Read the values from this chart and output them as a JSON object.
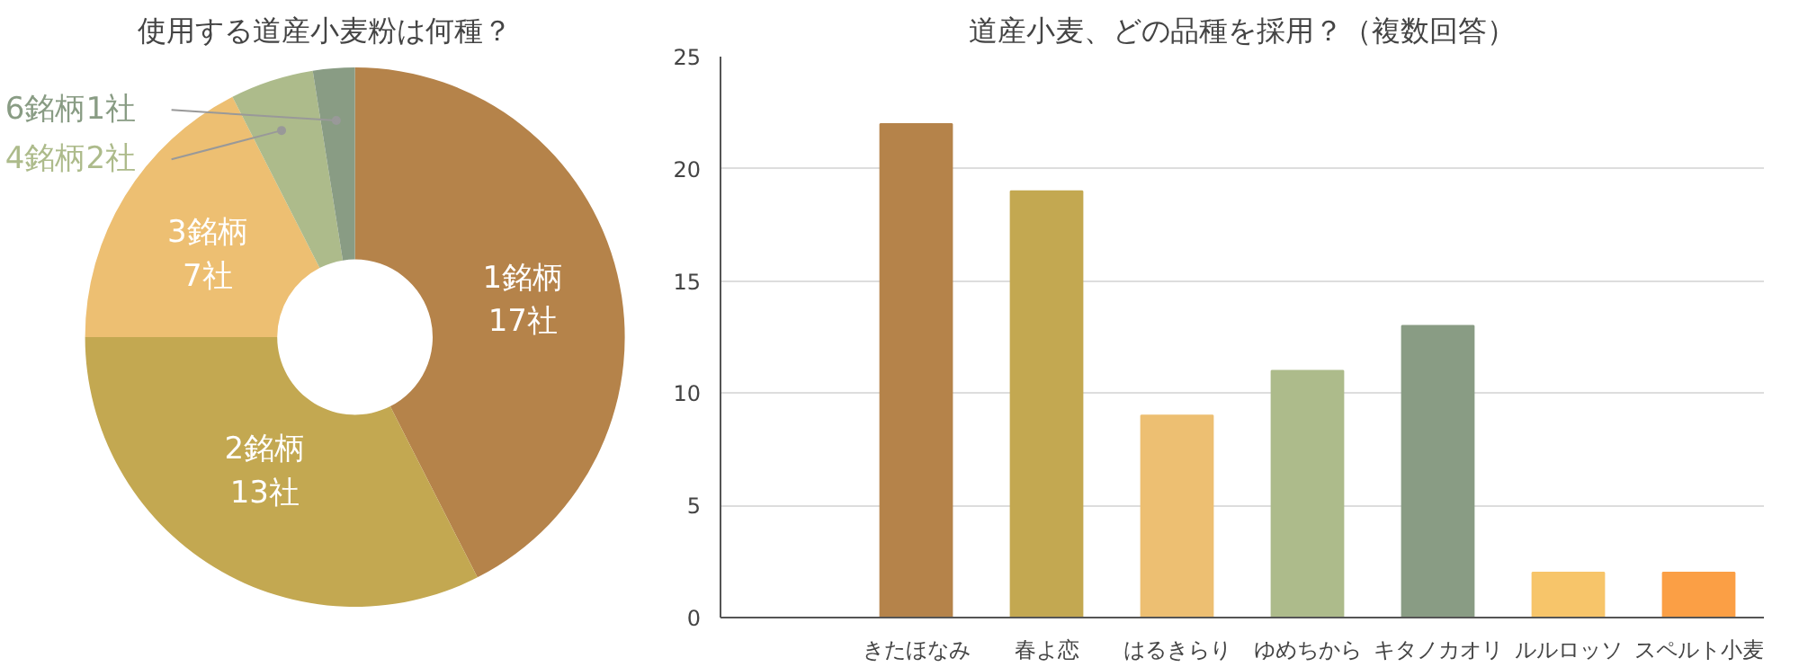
{
  "chart_data": [
    {
      "type": "donut",
      "title": "使用する道産小麦粉は何種？",
      "categories": [
        "1銘柄",
        "2銘柄",
        "3銘柄",
        "4銘柄",
        "6銘柄"
      ],
      "values": [
        17,
        13,
        7,
        2,
        1
      ],
      "value_labels": [
        "17社",
        "13社",
        "7社",
        "2社",
        "1社"
      ],
      "colors": [
        "#b5834a",
        "#c3a851",
        "#edbf72",
        "#adbb8b",
        "#899c84"
      ]
    },
    {
      "type": "bar",
      "title": "道産小麦、どの品種を採用？（複数回答）",
      "categories": [
        "きたほなみ",
        "春よ恋",
        "はるきらり",
        "ゆめちから",
        "キタノカオリ",
        "ルルロッソ",
        "スペルト小麦"
      ],
      "values": [
        22,
        19,
        9,
        11,
        13,
        2,
        2
      ],
      "colors": [
        "#b5834a",
        "#c3a851",
        "#edbf72",
        "#adbb8b",
        "#899c84",
        "#f7c56a",
        "#fb9f45"
      ],
      "ylim": [
        0,
        25
      ],
      "yticks": [
        0,
        5,
        10,
        15,
        20,
        25
      ],
      "grid": "y"
    }
  ]
}
